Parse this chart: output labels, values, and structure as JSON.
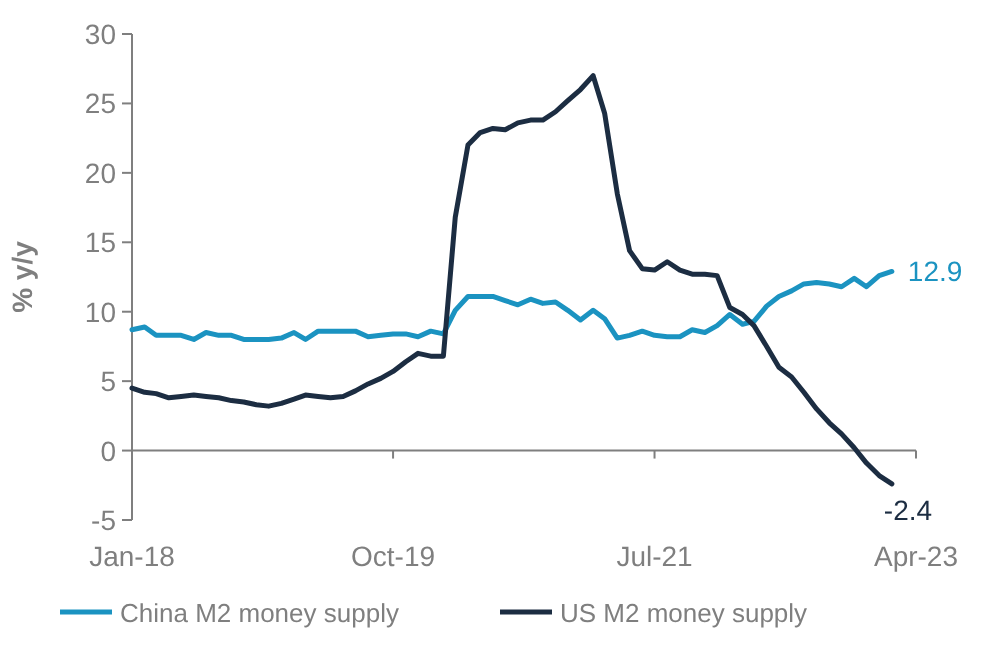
{
  "chart_data": {
    "type": "line",
    "ylabel": "% y/y",
    "x": [
      "2018-01",
      "2018-02",
      "2018-03",
      "2018-04",
      "2018-05",
      "2018-06",
      "2018-07",
      "2018-08",
      "2018-09",
      "2018-10",
      "2018-11",
      "2018-12",
      "2019-01",
      "2019-02",
      "2019-03",
      "2019-04",
      "2019-05",
      "2019-06",
      "2019-07",
      "2019-08",
      "2019-09",
      "2019-10",
      "2019-11",
      "2019-12",
      "2020-01",
      "2020-02",
      "2020-03",
      "2020-04",
      "2020-05",
      "2020-06",
      "2020-07",
      "2020-08",
      "2020-09",
      "2020-10",
      "2020-11",
      "2020-12",
      "2021-01",
      "2021-02",
      "2021-03",
      "2021-04",
      "2021-05",
      "2021-06",
      "2021-07",
      "2021-08",
      "2021-09",
      "2021-10",
      "2021-11",
      "2021-12",
      "2022-01",
      "2022-02",
      "2022-03",
      "2022-04",
      "2022-05",
      "2022-06",
      "2022-07",
      "2022-08",
      "2022-09",
      "2022-10",
      "2022-11",
      "2022-12",
      "2023-01",
      "2023-02"
    ],
    "series": [
      {
        "name": "China M2 money supply",
        "color": "#1b93c1",
        "values": [
          8.7,
          8.9,
          8.3,
          8.3,
          8.3,
          8.0,
          8.5,
          8.3,
          8.3,
          8.0,
          8.0,
          8.0,
          8.1,
          8.5,
          8.0,
          8.6,
          8.6,
          8.6,
          8.6,
          8.2,
          8.3,
          8.4,
          8.4,
          8.2,
          8.6,
          8.4,
          10.1,
          11.1,
          11.1,
          11.1,
          10.8,
          10.5,
          10.9,
          10.6,
          10.7,
          10.1,
          9.4,
          10.1,
          9.5,
          8.1,
          8.3,
          8.6,
          8.3,
          8.2,
          8.2,
          8.7,
          8.5,
          9.0,
          9.8,
          9.1,
          9.3,
          10.4,
          11.1,
          11.5,
          12.0,
          12.1,
          12.0,
          11.8,
          12.4,
          11.8,
          12.6,
          12.9
        ]
      },
      {
        "name": "US M2 money supply",
        "color": "#1c2d42",
        "values": [
          4.5,
          4.2,
          4.1,
          3.8,
          3.9,
          4.0,
          3.9,
          3.8,
          3.6,
          3.5,
          3.3,
          3.2,
          3.4,
          3.7,
          4.0,
          3.9,
          3.8,
          3.9,
          4.3,
          4.8,
          5.2,
          5.7,
          6.4,
          7.0,
          6.8,
          6.8,
          16.8,
          22.0,
          22.9,
          23.2,
          23.1,
          23.6,
          23.8,
          23.8,
          24.4,
          25.2,
          26.0,
          27.0,
          24.3,
          18.5,
          14.4,
          13.1,
          13.0,
          13.6,
          13.0,
          12.7,
          12.7,
          12.6,
          10.3,
          9.8,
          9.0,
          7.5,
          6.0,
          5.3,
          4.2,
          3.0,
          2.0,
          1.2,
          0.2,
          -0.9,
          -1.8,
          -2.4
        ]
      }
    ],
    "xlim": [
      "2018-01",
      "2023-04"
    ],
    "xticks": [
      {
        "value": "2018-01",
        "label": "Jan-18"
      },
      {
        "value": "2019-10",
        "label": "Oct-19"
      },
      {
        "value": "2021-07",
        "label": "Jul-21"
      },
      {
        "value": "2023-04",
        "label": "Apr-23"
      }
    ],
    "ylim": [
      -5,
      30
    ],
    "yticks": [
      -5,
      0,
      5,
      10,
      15,
      20,
      25,
      30
    ],
    "annotations": [
      {
        "text": "12.9",
        "x": "2023-02",
        "y": 12.9
      },
      {
        "text": "-2.4",
        "x": "2023-02",
        "y": -2.4
      }
    ],
    "ref_lines": [
      {
        "axis": "y",
        "value": 0,
        "color": "#7f7f7f"
      }
    ],
    "legend": "bottom",
    "grid": false
  }
}
